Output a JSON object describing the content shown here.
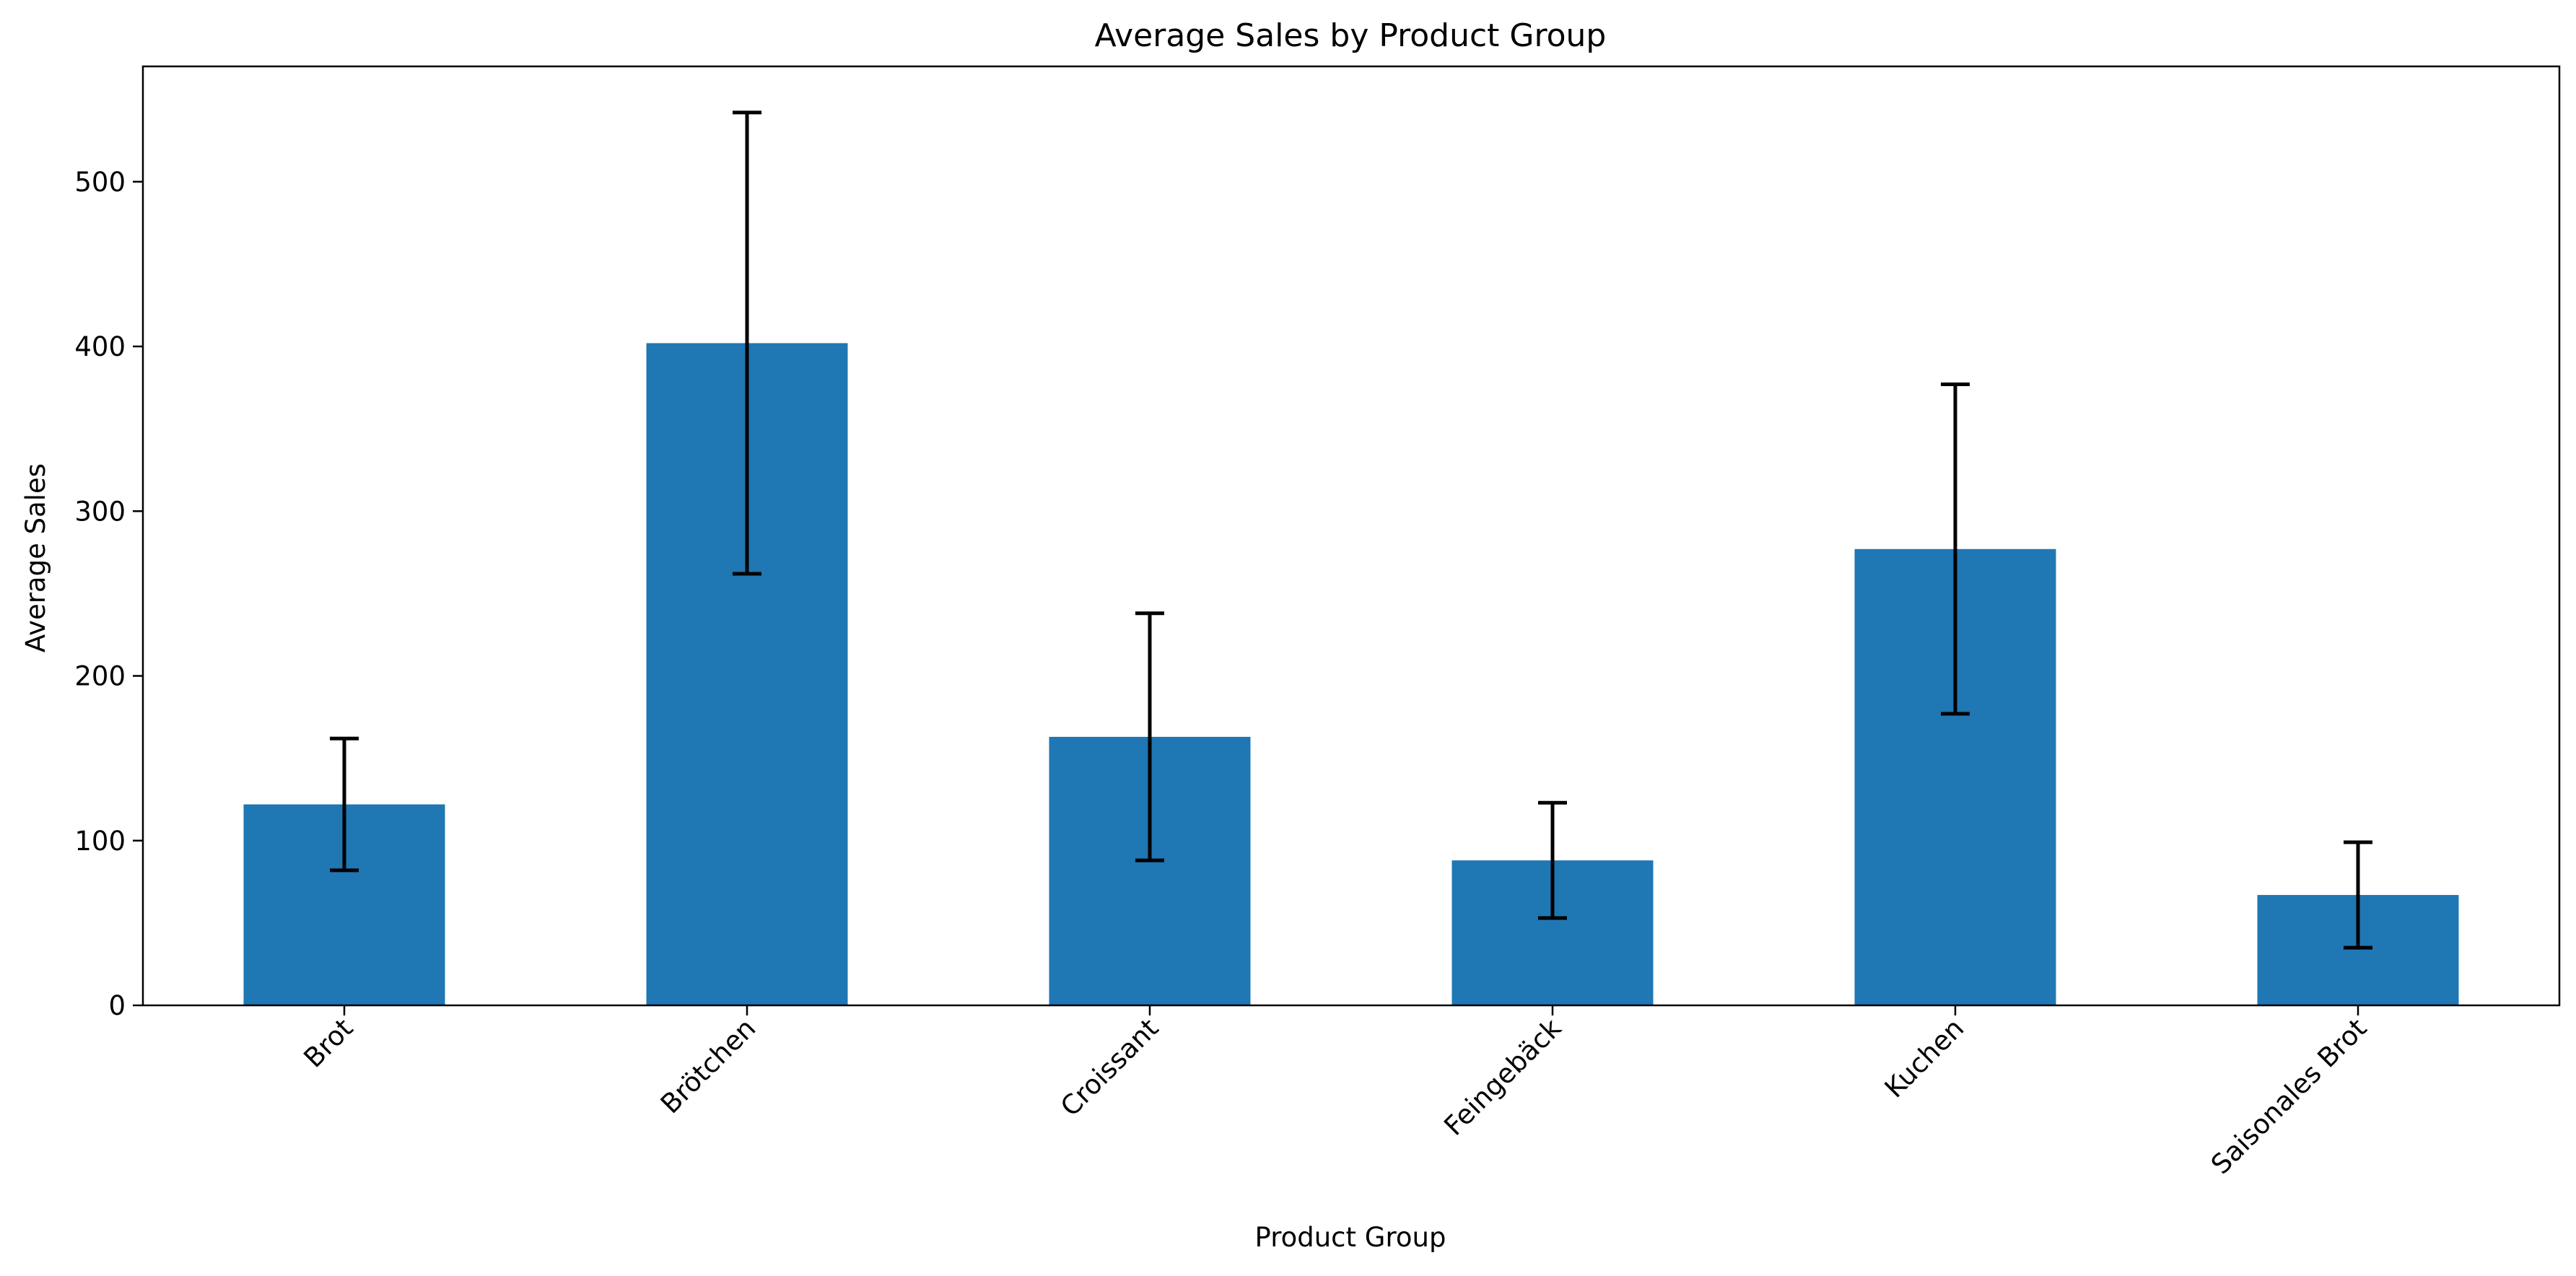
{
  "chart_data": {
    "type": "bar",
    "title": "Average Sales by Product Group",
    "xlabel": "Product Group",
    "ylabel": "Average Sales",
    "categories": [
      "Brot",
      "Brötchen",
      "Croissant",
      "Feingebäck",
      "Kuchen",
      "Saisonales Brot"
    ],
    "values": [
      122,
      402,
      163,
      88,
      277,
      67
    ],
    "errors": [
      40,
      140,
      75,
      35,
      100,
      32
    ],
    "ylim": [
      0,
      570
    ],
    "yticks": [
      0,
      100,
      200,
      300,
      400,
      500
    ],
    "grid": false,
    "bar_color": "#1f77b4",
    "error_color": "#000000"
  }
}
